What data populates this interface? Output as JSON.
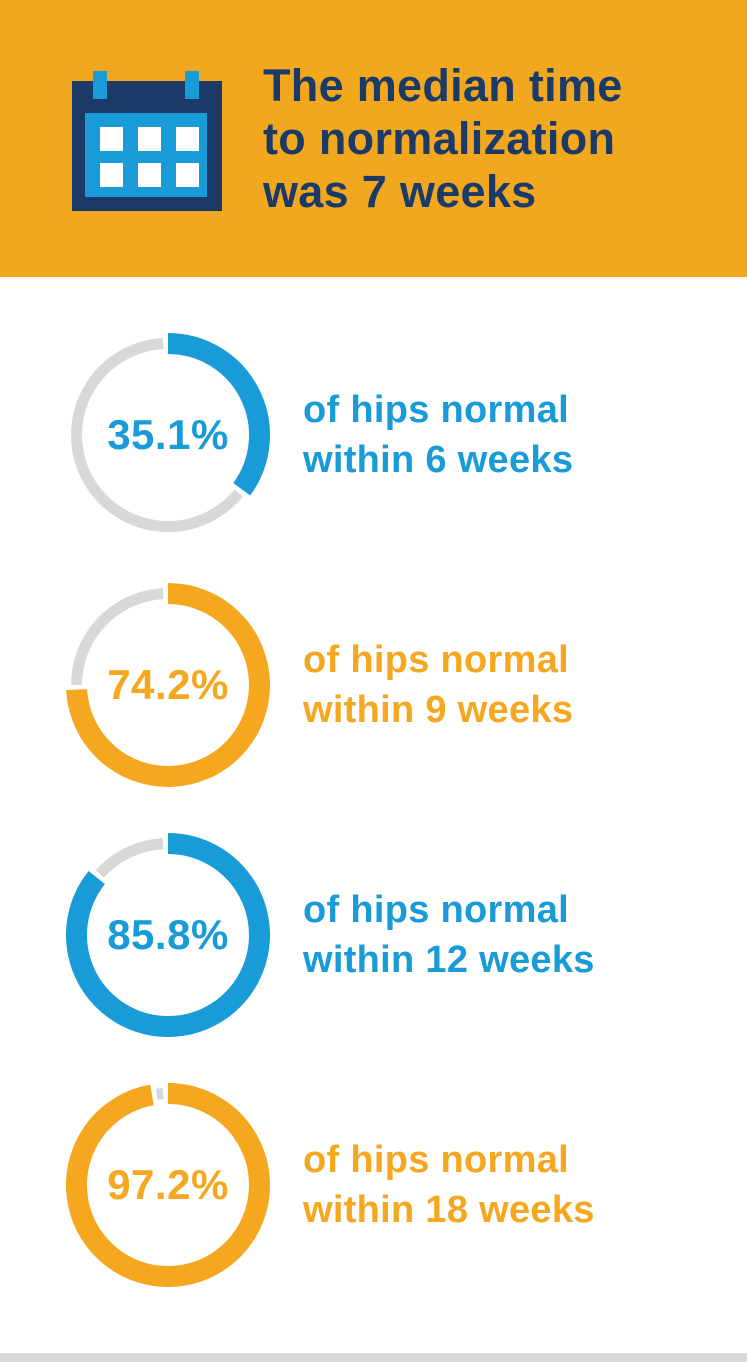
{
  "header": {
    "bg": "#F2A81E",
    "title_color": "#1B3A68",
    "title_lines": [
      "The median time",
      "to normalization",
      "was 7 weeks"
    ],
    "title_full": "The median time to normalization was 7 weeks",
    "icon": "calendar-icon",
    "icon_colors": {
      "body": "#1B3A68",
      "tabs": "#189BD7",
      "panel": "#189BD7",
      "cells": "#FFFFFF"
    }
  },
  "chart_data": {
    "type": "pie",
    "subtype": "donut-progress-rings",
    "title": "The median time to normalization was 7 weeks",
    "track_color": "#D7D8D9",
    "arc_start": "top",
    "direction": "clockwise",
    "rings": [
      {
        "value": 35.1,
        "unit": "%",
        "label": "35.1%",
        "weeks": 6,
        "color": "#189BD7",
        "caption_line1": "of hips normal",
        "caption_line2": "within 6 weeks"
      },
      {
        "value": 74.2,
        "unit": "%",
        "label": "74.2%",
        "weeks": 9,
        "color": "#F5A71F",
        "caption_line1": "of hips normal",
        "caption_line2": "within 9 weeks"
      },
      {
        "value": 85.8,
        "unit": "%",
        "label": "85.8%",
        "weeks": 12,
        "color": "#189BD7",
        "caption_line1": "of hips normal",
        "caption_line2": "within 12 weeks"
      },
      {
        "value": 97.2,
        "unit": "%",
        "label": "97.2%",
        "weeks": 18,
        "color": "#F5A71F",
        "caption_line1": "of hips normal",
        "caption_line2": "within 18 weeks"
      }
    ]
  },
  "footer": {
    "bar_color": "#D9D9D9"
  }
}
